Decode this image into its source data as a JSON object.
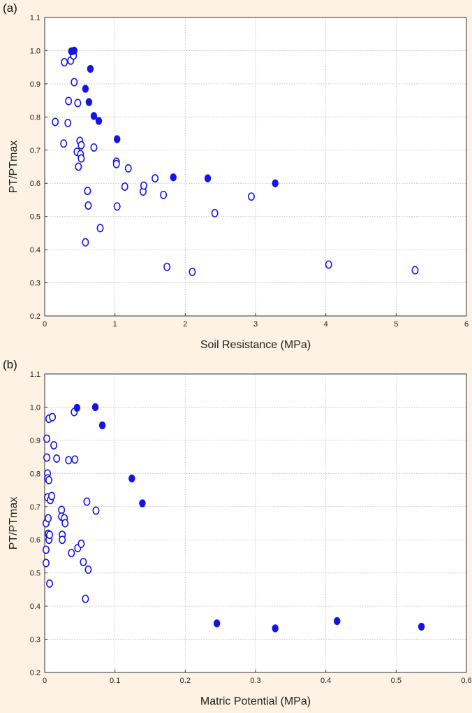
{
  "chart_data": [
    {
      "panel_label": "(a)",
      "type": "scatter",
      "xlabel": "Soil Resistance (MPa)",
      "ylabel": "PT/PTmax",
      "xlim": [
        0,
        6
      ],
      "ylim": [
        0.2,
        1.1
      ],
      "xticks": [
        "0",
        "1",
        "2",
        "3",
        "4",
        "5",
        "6"
      ],
      "yticks": [
        "0.2",
        "0.3",
        "0.4",
        "0.5",
        "0.6",
        "0.7",
        "0.8",
        "0.9",
        "1.0",
        "1.1"
      ],
      "grid": true,
      "series": [
        {
          "marker": "open",
          "color": "#1414e6",
          "points": [
            [
              0.15,
              0.785
            ],
            [
              0.27,
              0.72
            ],
            [
              0.28,
              0.965
            ],
            [
              0.33,
              0.782
            ],
            [
              0.34,
              0.848
            ],
            [
              0.37,
              0.97
            ],
            [
              0.41,
              0.985
            ],
            [
              0.42,
              0.905
            ],
            [
              0.46,
              0.695
            ],
            [
              0.47,
              0.842
            ],
            [
              0.48,
              0.65
            ],
            [
              0.5,
              0.728
            ],
            [
              0.51,
              0.688
            ],
            [
              0.52,
              0.715
            ],
            [
              0.52,
              0.675
            ],
            [
              0.58,
              0.422
            ],
            [
              0.61,
              0.577
            ],
            [
              0.62,
              0.533
            ],
            [
              0.7,
              0.708
            ],
            [
              0.79,
              0.465
            ],
            [
              1.02,
              0.665
            ],
            [
              1.02,
              0.658
            ],
            [
              1.03,
              0.53
            ],
            [
              1.14,
              0.59
            ],
            [
              1.19,
              0.645
            ],
            [
              1.4,
              0.575
            ],
            [
              1.41,
              0.593
            ],
            [
              1.57,
              0.615
            ],
            [
              1.69,
              0.565
            ],
            [
              1.74,
              0.348
            ],
            [
              2.1,
              0.333
            ],
            [
              2.42,
              0.51
            ],
            [
              2.94,
              0.56
            ],
            [
              4.04,
              0.355
            ],
            [
              5.27,
              0.338
            ]
          ]
        },
        {
          "marker": "filled",
          "color": "#1414e6",
          "points": [
            [
              0.38,
              0.998
            ],
            [
              0.42,
              1.0
            ],
            [
              0.58,
              0.885
            ],
            [
              0.63,
              0.845
            ],
            [
              0.65,
              0.945
            ],
            [
              0.7,
              0.803
            ],
            [
              0.77,
              0.788
            ],
            [
              1.03,
              0.733
            ],
            [
              1.83,
              0.618
            ],
            [
              2.32,
              0.615
            ],
            [
              3.28,
              0.6
            ]
          ]
        }
      ]
    },
    {
      "panel_label": "(b)",
      "type": "scatter",
      "xlabel": "Matric Potential (MPa)",
      "ylabel": "PT/PTmax",
      "xlim": [
        0,
        0.6
      ],
      "ylim": [
        0.2,
        1.1
      ],
      "xticks": [
        "0",
        "0.1",
        "0.2",
        "0.3",
        "0.4",
        "0.5",
        "0.6"
      ],
      "yticks": [
        "0.2",
        "0.3",
        "0.4",
        "0.5",
        "0.6",
        "0.7",
        "0.8",
        "0.9",
        "1.0",
        "1.1"
      ],
      "grid": true,
      "series": [
        {
          "marker": "open",
          "color": "#1414e6",
          "points": [
            [
              0.002,
              0.65
            ],
            [
              0.002,
              0.57
            ],
            [
              0.002,
              0.53
            ],
            [
              0.003,
              0.905
            ],
            [
              0.003,
              0.848
            ],
            [
              0.004,
              0.8
            ],
            [
              0.004,
              0.785
            ],
            [
              0.004,
              0.728
            ],
            [
              0.005,
              0.665
            ],
            [
              0.005,
              0.618
            ],
            [
              0.006,
              0.6
            ],
            [
              0.006,
              0.965
            ],
            [
              0.006,
              0.78
            ],
            [
              0.007,
              0.615
            ],
            [
              0.007,
              0.468
            ],
            [
              0.008,
              0.72
            ],
            [
              0.01,
              0.732
            ],
            [
              0.011,
              0.97
            ],
            [
              0.013,
              0.885
            ],
            [
              0.017,
              0.845
            ],
            [
              0.024,
              0.69
            ],
            [
              0.024,
              0.67
            ],
            [
              0.025,
              0.615
            ],
            [
              0.025,
              0.6
            ],
            [
              0.028,
              0.665
            ],
            [
              0.029,
              0.65
            ],
            [
              0.034,
              0.84
            ],
            [
              0.038,
              0.56
            ],
            [
              0.042,
              0.985
            ],
            [
              0.043,
              0.842
            ],
            [
              0.047,
              0.575
            ],
            [
              0.052,
              0.588
            ],
            [
              0.055,
              0.533
            ],
            [
              0.058,
              0.422
            ],
            [
              0.06,
              0.715
            ],
            [
              0.062,
              0.51
            ],
            [
              0.073,
              0.688
            ]
          ]
        },
        {
          "marker": "filled",
          "color": "#1414e6",
          "points": [
            [
              0.046,
              0.998
            ],
            [
              0.072,
              1.0
            ],
            [
              0.082,
              0.945
            ],
            [
              0.124,
              0.785
            ],
            [
              0.139,
              0.71
            ],
            [
              0.245,
              0.348
            ],
            [
              0.328,
              0.333
            ],
            [
              0.416,
              0.355
            ],
            [
              0.536,
              0.338
            ]
          ]
        }
      ]
    }
  ]
}
